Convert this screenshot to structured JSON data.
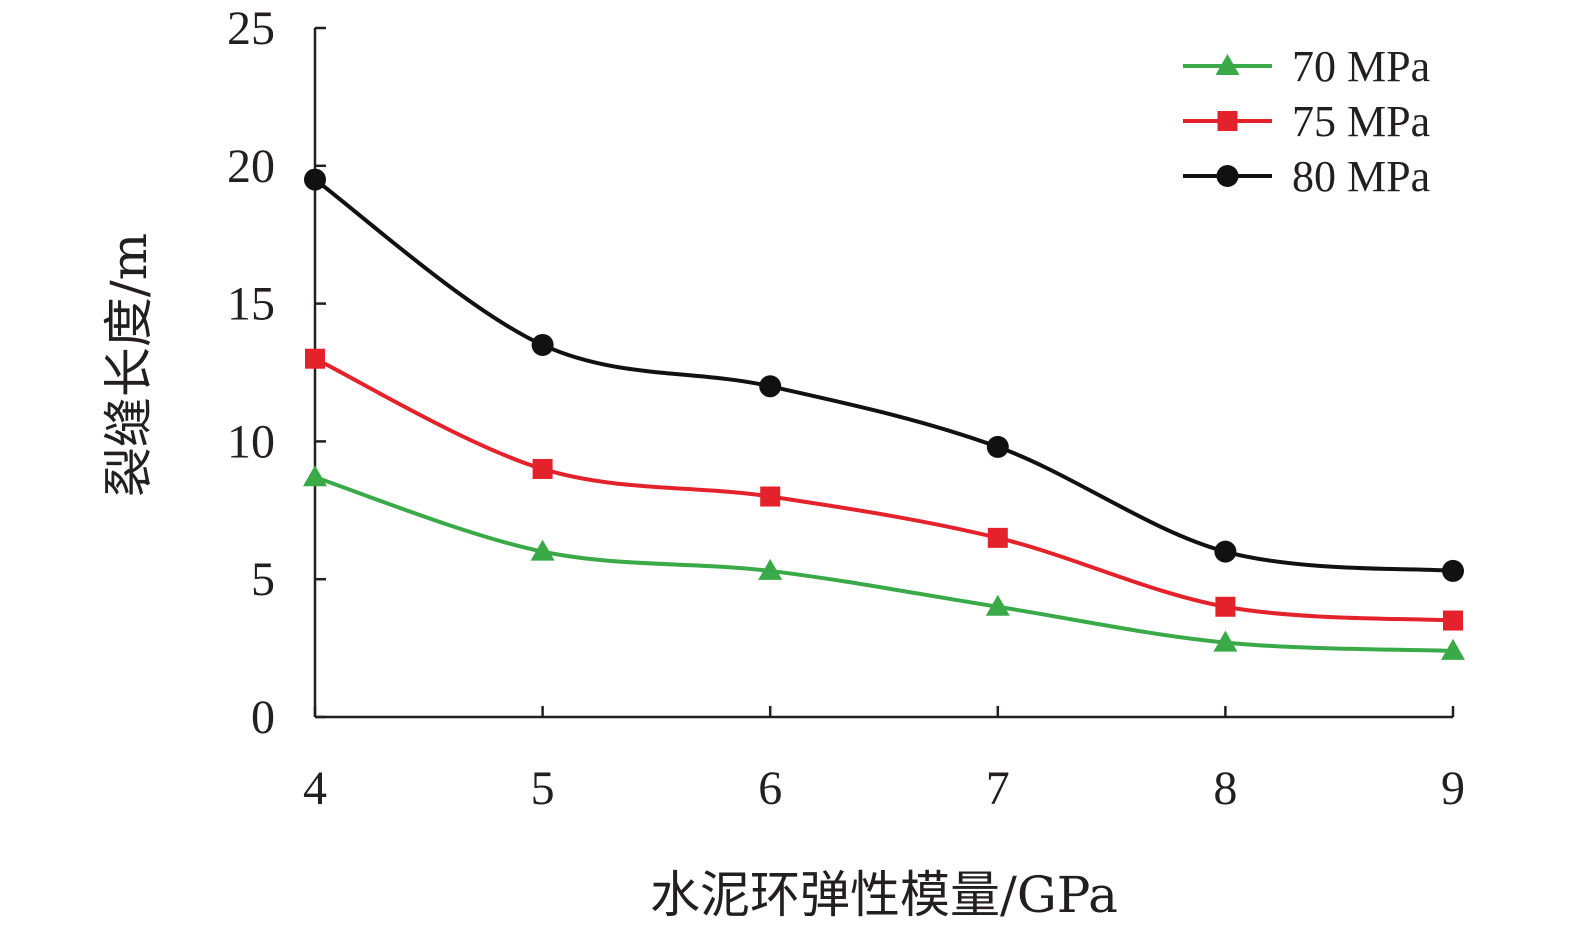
{
  "chart_data": {
    "type": "line",
    "xlabel": "水泥环弹性模量/GPa",
    "ylabel": "裂缝长度/m",
    "x": [
      4,
      5,
      6,
      7,
      8,
      9
    ],
    "xlim": [
      4,
      9
    ],
    "ylim": [
      0,
      25
    ],
    "xticks": [
      "4",
      "5",
      "6",
      "7",
      "8",
      "9"
    ],
    "yticks": [
      "0",
      "5",
      "10",
      "15",
      "20",
      "25"
    ],
    "grid": false,
    "legend_position": "top-right",
    "series": [
      {
        "name": "70 MPa",
        "values": [
          8.7,
          6.0,
          5.3,
          4.0,
          2.7,
          2.4
        ],
        "color": "#3aaa48",
        "marker": "triangle"
      },
      {
        "name": "75 MPa",
        "values": [
          13.0,
          9.0,
          8.0,
          6.5,
          4.0,
          3.5
        ],
        "color": "#e3222b",
        "marker": "square"
      },
      {
        "name": "80 MPa",
        "values": [
          19.5,
          13.5,
          12.0,
          9.8,
          6.0,
          5.3
        ],
        "color": "#111111",
        "marker": "circle"
      }
    ]
  }
}
